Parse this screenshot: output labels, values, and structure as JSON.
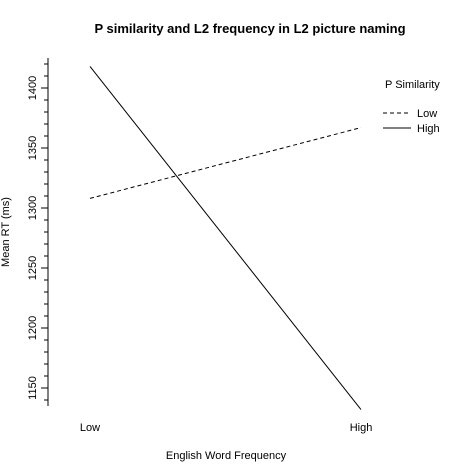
{
  "chart_data": {
    "type": "line",
    "title": "P similarity and L2 frequency in L2 picture naming",
    "xlabel": "English Word Frequency",
    "ylabel": "Mean RT (ms)",
    "categories": [
      "Low",
      "High"
    ],
    "ylim": [
      1135,
      1425
    ],
    "yticks": [
      1150,
      1200,
      1250,
      1300,
      1350,
      1400
    ],
    "series": [
      {
        "name": "Low",
        "values": [
          1308,
          1367
        ],
        "line_style": "dashed"
      },
      {
        "name": "High",
        "values": [
          1418,
          1132
        ],
        "line_style": "solid"
      }
    ],
    "legend": {
      "title": "P Similarity",
      "position": "top-right"
    },
    "grid": false,
    "colors": {
      "line": "#000000",
      "background": "#ffffff"
    }
  }
}
